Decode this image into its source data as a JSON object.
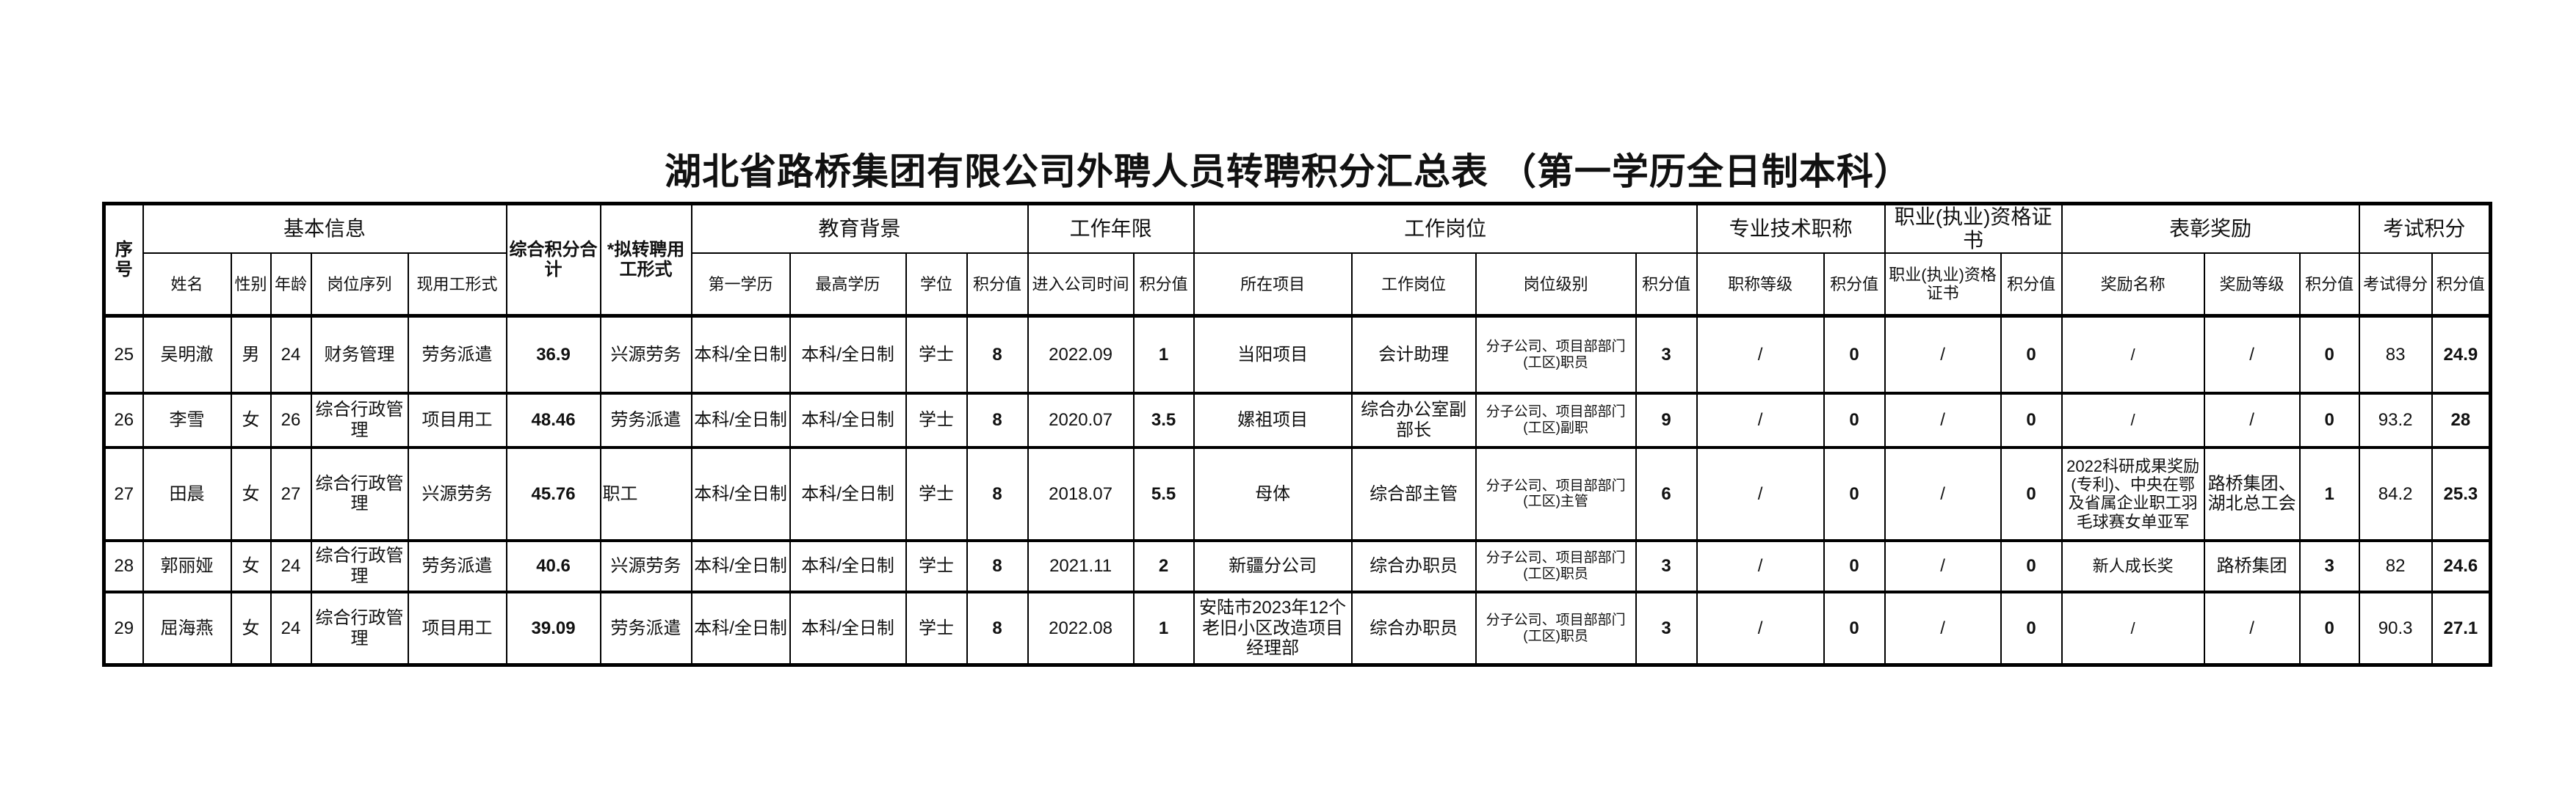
{
  "title": "湖北省路桥集团有限公司外聘人员转聘积分汇总表 （第一学历全日制本科）",
  "header_groups": [
    {
      "label": "序号",
      "rowspan": 2,
      "colspan": 1
    },
    {
      "label": "基本信息",
      "rowspan": 1,
      "colspan": 5
    },
    {
      "label": "综合积分合计",
      "rowspan": 2,
      "colspan": 1
    },
    {
      "label": "*拟转聘用工形式",
      "rowspan": 2,
      "colspan": 1
    },
    {
      "label": "教育背景",
      "rowspan": 1,
      "colspan": 4
    },
    {
      "label": "工作年限",
      "rowspan": 1,
      "colspan": 2
    },
    {
      "label": "工作岗位",
      "rowspan": 1,
      "colspan": 4
    },
    {
      "label": "专业技术职称",
      "rowspan": 1,
      "colspan": 2
    },
    {
      "label": "职业(执业)资格证书",
      "rowspan": 1,
      "colspan": 2
    },
    {
      "label": "表彰奖励",
      "rowspan": 1,
      "colspan": 3
    },
    {
      "label": "考试积分",
      "rowspan": 1,
      "colspan": 2
    }
  ],
  "sub_headers": [
    "姓名",
    "性别",
    "年龄",
    "岗位序列",
    "现用工形式",
    "第一学历",
    "最高学历",
    "学位",
    "积分值",
    "进入公司时间",
    "积分值",
    "所在项目",
    "工作岗位",
    "岗位级别",
    "积分值",
    "职称等级",
    "积分值",
    "职业(执业)资格证书",
    "积分值",
    "奖励名称",
    "奖励等级",
    "积分值",
    "考试得分",
    "积分值"
  ],
  "rows": [
    [
      "25",
      "吴明澈",
      "男",
      "24",
      "财务管理",
      "劳务派遣",
      "36.9",
      "兴源劳务",
      "本科/全日制",
      "本科/全日制",
      "学士",
      "8",
      "2022.09",
      "1",
      "当阳项目",
      "会计助理",
      "分子公司、项目部部门(工区)职员",
      "3",
      "/",
      "0",
      "/",
      "0",
      "/",
      "/",
      "0",
      "83",
      "24.9"
    ],
    [
      "26",
      "李雪",
      "女",
      "26",
      "综合行政管理",
      "项目用工",
      "48.46",
      "劳务派遣",
      "本科/全日制",
      "本科/全日制",
      "学士",
      "8",
      "2020.07",
      "3.5",
      "嫘祖项目",
      "综合办公室副部长",
      "分子公司、项目部部门(工区)副职",
      "9",
      "/",
      "0",
      "/",
      "0",
      "/",
      "/",
      "0",
      "93.2",
      "28"
    ],
    [
      "27",
      "田晨",
      "女",
      "27",
      "综合行政管理",
      "兴源劳务",
      "45.76",
      "职工",
      "本科/全日制",
      "本科/全日制",
      "学士",
      "8",
      "2018.07",
      "5.5",
      "母体",
      "综合部主管",
      "分子公司、项目部部门(工区)主管",
      "6",
      "/",
      "0",
      "/",
      "0",
      "2022科研成果奖励(专利)、中央在鄂及省属企业职工羽毛球赛女单亚军",
      "路桥集团、湖北总工会",
      "1",
      "84.2",
      "25.3"
    ],
    [
      "28",
      "郭丽娅",
      "女",
      "24",
      "综合行政管理",
      "劳务派遣",
      "40.6",
      "兴源劳务",
      "本科/全日制",
      "本科/全日制",
      "学士",
      "8",
      "2021.11",
      "2",
      "新疆分公司",
      "综合办职员",
      "分子公司、项目部部门(工区)职员",
      "3",
      "/",
      "0",
      "/",
      "0",
      "新人成长奖",
      "路桥集团",
      "3",
      "82",
      "24.6"
    ],
    [
      "29",
      "屈海燕",
      "女",
      "24",
      "综合行政管理",
      "项目用工",
      "39.09",
      "劳务派遣",
      "本科/全日制",
      "本科/全日制",
      "学士",
      "8",
      "2022.08",
      "1",
      "安陆市2023年12个老旧小区改造项目经理部",
      "综合办职员",
      "分子公司、项目部部门(工区)职员",
      "3",
      "/",
      "0",
      "/",
      "0",
      "/",
      "/",
      "0",
      "90.3",
      "27.1"
    ]
  ]
}
